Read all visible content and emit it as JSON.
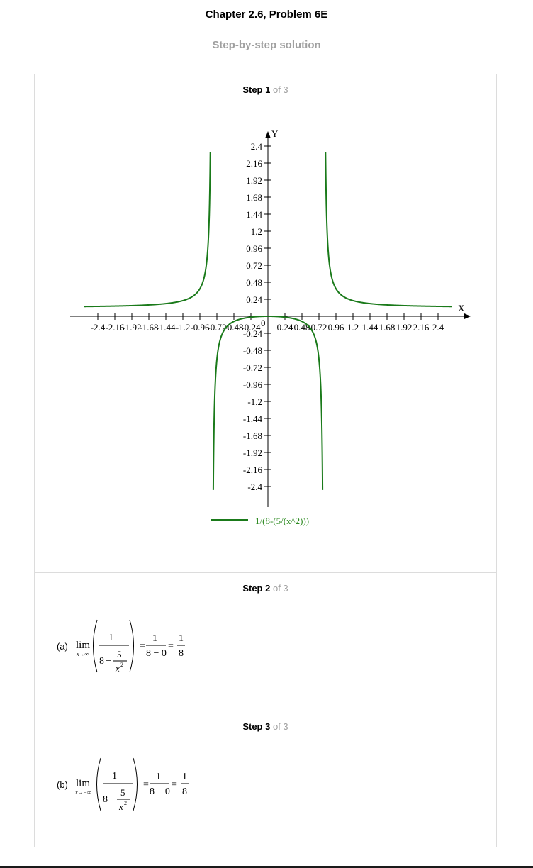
{
  "header": {
    "title": "Chapter 2.6, Problem 6E",
    "subtitle": "Step-by-step solution"
  },
  "steps": [
    {
      "label": "Step 1",
      "of": "of 3"
    },
    {
      "label": "Step 2",
      "of": "of 3"
    },
    {
      "label": "Step 3",
      "of": "of 3"
    }
  ],
  "chart_data": {
    "type": "line",
    "function": "1/(8-5/x^2)",
    "legend": "1/(8-(5/(x^2)))",
    "xlabel": "X",
    "ylabel": "Y",
    "xlim": [
      -2.5,
      2.5
    ],
    "ylim": [
      -2.6,
      2.6
    ],
    "x_ticks": [
      "-2.4",
      "-2.16",
      "-1.92",
      "-1.68",
      "-1.44",
      "-1.2",
      "-0.96",
      "-0.72",
      "-0.48",
      "-0.24",
      "0.24",
      "0.48",
      "0.72",
      "0.96",
      "1.2",
      "1.44",
      "1.68",
      "1.92",
      "2.16",
      "2.4"
    ],
    "y_ticks": [
      "2.4",
      "2.16",
      "1.92",
      "1.68",
      "1.44",
      "1.2",
      "0.96",
      "0.72",
      "0.48",
      "0.24",
      "-0.24",
      "-0.48",
      "-0.72",
      "-0.96",
      "-1.2",
      "-1.44",
      "-1.68",
      "-1.92",
      "-2.16",
      "-2.4"
    ],
    "origin_label": "0",
    "line_color": "#1a7a1a",
    "legend_placement": "bottom-center",
    "grid": false
  },
  "parts": {
    "a": {
      "label": "(a)",
      "lim": "lim",
      "sub": "x→∞",
      "num": "1",
      "den_a": "8",
      "minus": "−",
      "frac_num": "5",
      "frac_den": "x",
      "exp": "2",
      "eq": "=",
      "mid_num": "1",
      "mid_den": "8 − 0",
      "res_num": "1",
      "res_den": "8"
    },
    "b": {
      "label": "(b)",
      "lim": "lim",
      "sub": "x→−∞",
      "num": "1",
      "den_a": "8",
      "minus": "−",
      "frac_num": "5",
      "frac_den": "x",
      "exp": "2",
      "eq": "=",
      "mid_num": "1",
      "mid_den": "8 − 0",
      "res_num": "1",
      "res_den": "8"
    }
  }
}
